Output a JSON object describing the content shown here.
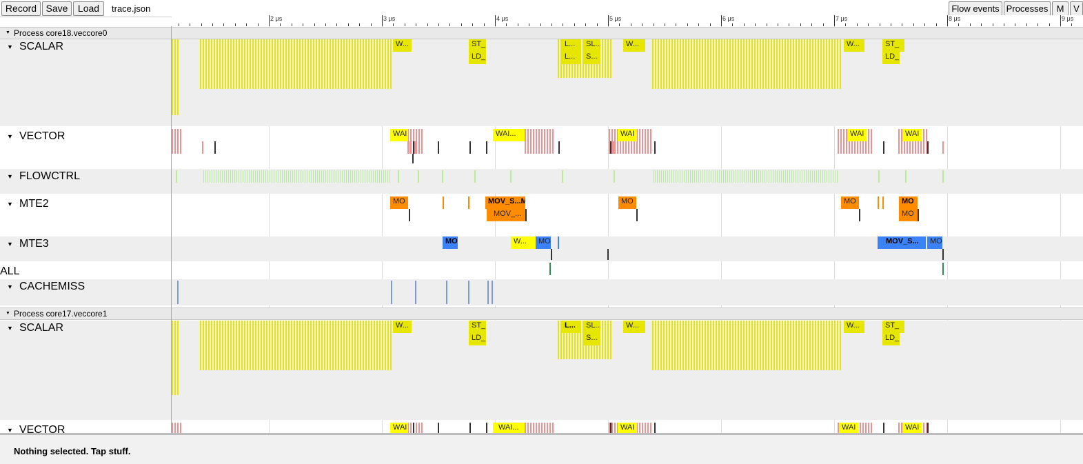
{
  "toolbar": {
    "record": "Record",
    "save": "Save",
    "load": "Load",
    "filename": "trace.json",
    "flow_events": "Flow events",
    "processes": "Processes",
    "m": "M",
    "v": "V"
  },
  "ruler": {
    "ticks": [
      "2 μs",
      "3 μs",
      "4 μs",
      "5 μs",
      "6 μs",
      "7 μs",
      "8 μs",
      "9 μs"
    ]
  },
  "processes": [
    {
      "title": "Process core18.veccore0",
      "tracks": [
        "SCALAR",
        "VECTOR",
        "FLOWCTRL",
        "MTE2",
        "MTE3",
        "ALL",
        "CACHEMISS"
      ]
    },
    {
      "title": "Process core17.veccore1",
      "tracks": [
        "SCALAR",
        "VECTOR"
      ]
    }
  ],
  "slices": {
    "p1_scalar": [
      "W...",
      "ST_",
      "LD_",
      "L...",
      "SL...",
      "L...",
      "S...",
      "W...",
      "W...",
      "ST_",
      "LD_"
    ],
    "p1_vector": [
      "WAI",
      "WAI...",
      "WAI",
      "WAI",
      "WAI"
    ],
    "p1_mte2": [
      "MO",
      "MOV_S...MO",
      "MOV_...",
      "MO",
      "MO",
      "MO",
      "MO"
    ],
    "p1_mte3": [
      "MO",
      "W...",
      "MO",
      "MOV_S...",
      "MO"
    ],
    "p2_scalar": [
      "W...",
      "ST_",
      "LD_",
      "L...",
      "SL...",
      "S...",
      "W...",
      "W...",
      "ST_",
      "LD_"
    ],
    "p2_vector": [
      "WAI",
      "WAI...",
      "WAI",
      "WAI",
      "WAI"
    ]
  },
  "colors": {
    "scalar": "#e6e600",
    "vector_wait": "#ffff00",
    "vector": "#f09090",
    "flowctrl": "#b7ec9a",
    "mte2": "#ff8c00",
    "mte3": "#3b82f6",
    "all": "#2e8b57",
    "cachemiss": "#7b9bd6"
  },
  "status": "Nothing selected. Tap stuff."
}
